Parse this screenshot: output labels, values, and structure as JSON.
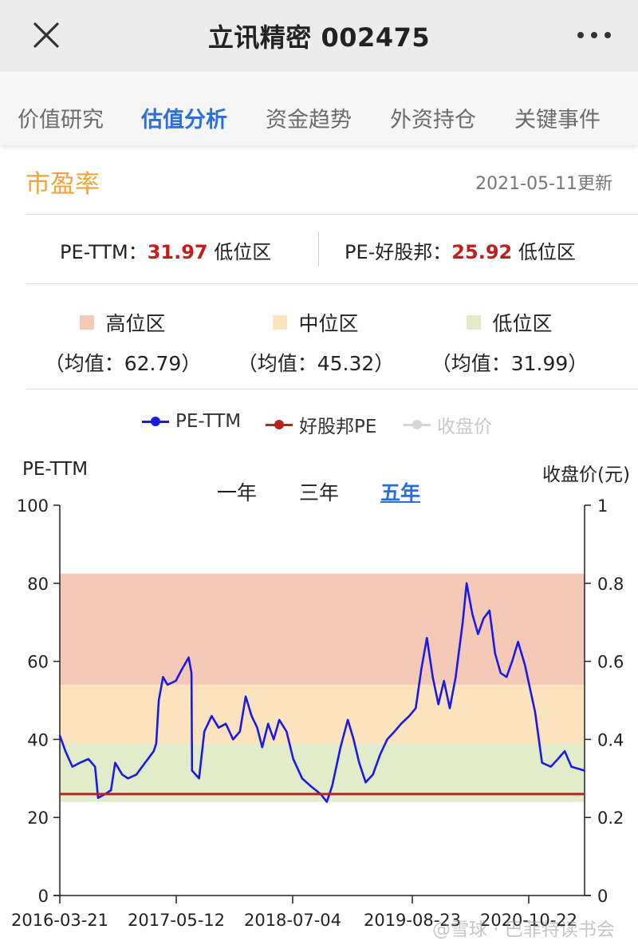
{
  "header": {
    "title": "立讯精密 002475"
  },
  "tabs": [
    {
      "label": "价值研究",
      "active": false
    },
    {
      "label": "估值分析",
      "active": true
    },
    {
      "label": "资金趋势",
      "active": false
    },
    {
      "label": "外资持仓",
      "active": false
    },
    {
      "label": "关键事件",
      "active": false
    }
  ],
  "section": {
    "title": "市盈率",
    "updated": "2021-05-11更新"
  },
  "pe": {
    "ttm_label": "PE-TTM：",
    "ttm_value": "31.97",
    "ttm_zone": "低位区",
    "hgb_label": "PE-好股邦：",
    "hgb_value": "25.92",
    "hgb_zone": "低位区"
  },
  "zones": [
    {
      "name": "高位区",
      "avg": "（均值：62.79）",
      "color": "#f5c9b8"
    },
    {
      "name": "中位区",
      "avg": "（均值：45.32）",
      "color": "#fae3bd"
    },
    {
      "name": "低位区",
      "avg": "（均值：31.99）",
      "color": "#e2eccb"
    }
  ],
  "legend": [
    {
      "label": "PE-TTM",
      "color": "#1a1ae6"
    },
    {
      "label": "好股邦PE",
      "color": "#c0201b"
    },
    {
      "label": "收盘价",
      "color": "#c8c8c8"
    }
  ],
  "range": {
    "one_year": "一年",
    "three_year": "三年",
    "five_year": "五年",
    "active": "five_year"
  },
  "watermark": "@雪球 · 巴菲特读书会",
  "chart_data": {
    "type": "line",
    "y_left_label": "PE-TTM",
    "y_right_label": "收盘价(元)",
    "ylim_left": [
      0,
      100
    ],
    "ylim_right": [
      0,
      1
    ],
    "y_ticks_left": [
      "0",
      "20",
      "40",
      "60",
      "80",
      "100"
    ],
    "y_ticks_right": [
      "0",
      "0.2",
      "0.4",
      "0.6",
      "0.8",
      "1"
    ],
    "x_tick_labels": [
      "2016-03-21",
      "2017-05-12",
      "2018-07-04",
      "2019-08-23",
      "2020-10-22"
    ],
    "bands": [
      {
        "name": "高位区",
        "from": 54,
        "to": 82.5,
        "color": "#f5c9b8"
      },
      {
        "name": "中位区",
        "from": 39,
        "to": 54,
        "color": "#fae3bd"
      },
      {
        "name": "低位区",
        "from": 24,
        "to": 39,
        "color": "#e2eccb"
      }
    ],
    "series": [
      {
        "name": "PE-TTM",
        "color": "#1a1ae6",
        "points": [
          [
            "2016-03-21",
            41
          ],
          [
            "2016-04-10",
            37
          ],
          [
            "2016-05-05",
            33
          ],
          [
            "2016-06-01",
            34
          ],
          [
            "2016-07-01",
            35
          ],
          [
            "2016-07-25",
            33
          ],
          [
            "2016-08-05",
            25
          ],
          [
            "2016-08-30",
            26
          ],
          [
            "2016-09-20",
            27
          ],
          [
            "2016-10-05",
            34
          ],
          [
            "2016-10-30",
            31
          ],
          [
            "2016-11-20",
            30
          ],
          [
            "2016-12-20",
            31
          ],
          [
            "2017-01-20",
            34
          ],
          [
            "2017-02-20",
            37
          ],
          [
            "2017-03-01",
            39
          ],
          [
            "2017-03-10",
            50
          ],
          [
            "2017-03-25",
            56
          ],
          [
            "2017-04-10",
            54
          ],
          [
            "2017-05-10",
            55
          ],
          [
            "2017-06-01",
            58
          ],
          [
            "2017-06-25",
            61
          ],
          [
            "2017-07-05",
            57
          ],
          [
            "2017-07-07",
            32
          ],
          [
            "2017-08-01",
            30
          ],
          [
            "2017-08-20",
            42
          ],
          [
            "2017-09-15",
            46
          ],
          [
            "2017-10-10",
            43
          ],
          [
            "2017-11-05",
            44
          ],
          [
            "2017-12-01",
            40
          ],
          [
            "2017-12-25",
            42
          ],
          [
            "2018-01-15",
            51
          ],
          [
            "2018-02-05",
            46
          ],
          [
            "2018-02-25",
            43
          ],
          [
            "2018-03-15",
            38
          ],
          [
            "2018-04-05",
            44
          ],
          [
            "2018-04-25",
            40
          ],
          [
            "2018-05-15",
            45
          ],
          [
            "2018-06-10",
            42
          ],
          [
            "2018-07-04",
            35
          ],
          [
            "2018-08-05",
            30
          ],
          [
            "2018-09-05",
            28
          ],
          [
            "2018-10-10",
            26
          ],
          [
            "2018-11-01",
            24
          ],
          [
            "2018-11-20",
            28
          ],
          [
            "2018-12-20",
            38
          ],
          [
            "2019-01-15",
            45
          ],
          [
            "2019-02-05",
            40
          ],
          [
            "2019-02-25",
            34
          ],
          [
            "2019-03-20",
            29
          ],
          [
            "2019-04-15",
            31
          ],
          [
            "2019-05-10",
            36
          ],
          [
            "2019-06-05",
            40
          ],
          [
            "2019-07-01",
            42
          ],
          [
            "2019-07-25",
            44
          ],
          [
            "2019-08-23",
            46
          ],
          [
            "2019-09-15",
            48
          ],
          [
            "2019-10-05",
            58
          ],
          [
            "2019-10-25",
            66
          ],
          [
            "2019-11-15",
            56
          ],
          [
            "2019-12-05",
            49
          ],
          [
            "2019-12-25",
            55
          ],
          [
            "2020-01-15",
            48
          ],
          [
            "2020-02-05",
            56
          ],
          [
            "2020-03-01",
            70
          ],
          [
            "2020-03-15",
            80
          ],
          [
            "2020-04-05",
            72
          ],
          [
            "2020-04-25",
            67
          ],
          [
            "2020-05-15",
            71
          ],
          [
            "2020-06-05",
            73
          ],
          [
            "2020-06-25",
            62
          ],
          [
            "2020-07-15",
            57
          ],
          [
            "2020-08-05",
            56
          ],
          [
            "2020-08-25",
            60
          ],
          [
            "2020-09-15",
            65
          ],
          [
            "2020-10-10",
            59
          ],
          [
            "2020-10-22",
            55
          ],
          [
            "2020-11-15",
            47
          ],
          [
            "2020-12-10",
            34
          ],
          [
            "2021-01-10",
            33
          ],
          [
            "2021-02-05",
            35
          ],
          [
            "2021-03-01",
            37
          ],
          [
            "2021-03-25",
            33
          ],
          [
            "2021-05-11",
            32
          ]
        ]
      },
      {
        "name": "好股邦PE",
        "color": "#c0201b",
        "points": [
          [
            "2016-03-21",
            26
          ],
          [
            "2021-05-11",
            26
          ]
        ]
      }
    ]
  }
}
